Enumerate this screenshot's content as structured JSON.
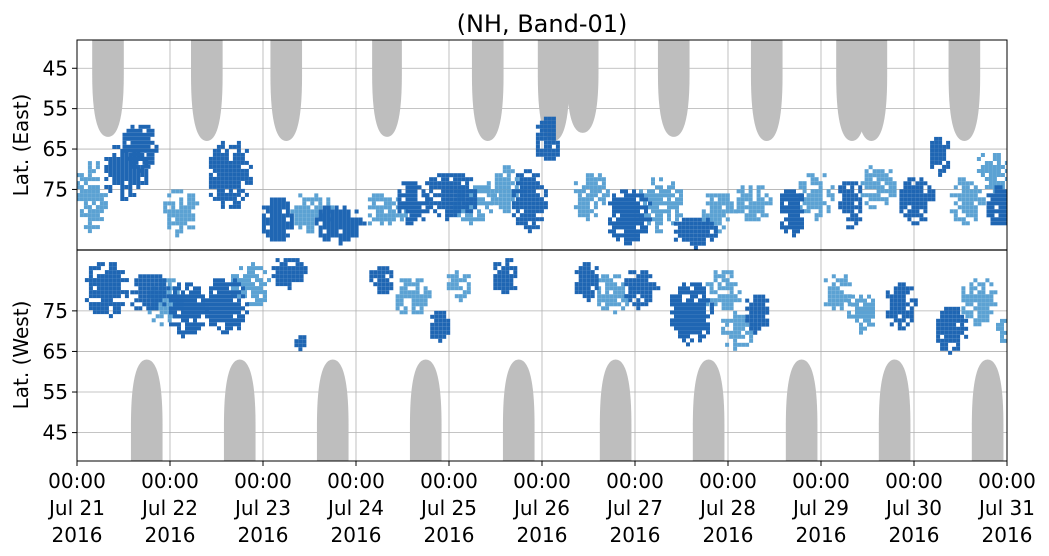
{
  "chart_data": {
    "type": "heatmap",
    "title": "(NH, Band-01)",
    "ylabel_upper": "Lat. (East)",
    "ylabel_lower": "Lat. (West)",
    "y_ticks_upper": [
      "45",
      "55",
      "65",
      "75"
    ],
    "y_ticks_lower": [
      "75",
      "65",
      "55",
      "45"
    ],
    "y_tick_values": [
      45,
      55,
      65,
      75
    ],
    "x_ticks": [
      [
        "00:00",
        "Jul 21",
        "2016"
      ],
      [
        "00:00",
        "Jul 22",
        "2016"
      ],
      [
        "00:00",
        "Jul 23",
        "2016"
      ],
      [
        "00:00",
        "Jul 24",
        "2016"
      ],
      [
        "00:00",
        "Jul 25",
        "2016"
      ],
      [
        "00:00",
        "Jul 26",
        "2016"
      ],
      [
        "00:00",
        "Jul 27",
        "2016"
      ],
      [
        "00:00",
        "Jul 28",
        "2016"
      ],
      [
        "00:00",
        "Jul 29",
        "2016"
      ],
      [
        "00:00",
        "Jul 30",
        "2016"
      ],
      [
        "00:00",
        "Jul 31",
        "2016"
      ]
    ],
    "xlim": [
      "2016-07-21 00:00",
      "2016-07-31 00:00"
    ],
    "ylim_upper": [
      38,
      90
    ],
    "ylim_lower": [
      90,
      38
    ],
    "grid": true,
    "colors": {
      "dark": "#1f66b3",
      "light": "#5ca2d3",
      "gray": "#bebebe",
      "centerline": "#000000"
    },
    "gray_upper": [
      {
        "center": "2016-07-21 08:00",
        "half_width_days": 0.17,
        "reach_lat": 62
      },
      {
        "center": "2016-07-22 09:30",
        "half_width_days": 0.17,
        "reach_lat": 63
      },
      {
        "center": "2016-07-23 06:00",
        "half_width_days": 0.17,
        "reach_lat": 63
      },
      {
        "center": "2016-07-24 08:00",
        "half_width_days": 0.16,
        "reach_lat": 62
      },
      {
        "center": "2016-07-25 10:00",
        "half_width_days": 0.17,
        "reach_lat": 63
      },
      {
        "center": "2016-07-26 03:00",
        "half_width_days": 0.17,
        "reach_lat": 63
      },
      {
        "center": "2016-07-26 10:30",
        "half_width_days": 0.17,
        "reach_lat": 61
      },
      {
        "center": "2016-07-27 10:00",
        "half_width_days": 0.17,
        "reach_lat": 62
      },
      {
        "center": "2016-07-28 10:00",
        "half_width_days": 0.17,
        "reach_lat": 63
      },
      {
        "center": "2016-07-29 08:00",
        "half_width_days": 0.17,
        "reach_lat": 63
      },
      {
        "center": "2016-07-29 13:00",
        "half_width_days": 0.17,
        "reach_lat": 63
      },
      {
        "center": "2016-07-30 13:00",
        "half_width_days": 0.17,
        "reach_lat": 63
      }
    ],
    "gray_lower": [
      {
        "center": "2016-07-21 18:00",
        "half_width_days": 0.17,
        "reach_lat": 63
      },
      {
        "center": "2016-07-22 18:00",
        "half_width_days": 0.17,
        "reach_lat": 63
      },
      {
        "center": "2016-07-23 18:00",
        "half_width_days": 0.17,
        "reach_lat": 63
      },
      {
        "center": "2016-07-24 18:00",
        "half_width_days": 0.17,
        "reach_lat": 63
      },
      {
        "center": "2016-07-25 18:00",
        "half_width_days": 0.17,
        "reach_lat": 63
      },
      {
        "center": "2016-07-26 19:00",
        "half_width_days": 0.17,
        "reach_lat": 63
      },
      {
        "center": "2016-07-27 19:00",
        "half_width_days": 0.17,
        "reach_lat": 63
      },
      {
        "center": "2016-07-28 19:00",
        "half_width_days": 0.17,
        "reach_lat": 63
      },
      {
        "center": "2016-07-29 19:00",
        "half_width_days": 0.17,
        "reach_lat": 63
      },
      {
        "center": "2016-07-30 19:00",
        "half_width_days": 0.17,
        "reach_lat": 63
      }
    ],
    "dark_blobs": [
      {
        "hemi": "upper",
        "t": "2016-07-21 12:00",
        "dt": 0.25,
        "lat": 70,
        "dlat": 7
      },
      {
        "hemi": "upper",
        "t": "2016-07-21 15:30",
        "dt": 0.2,
        "lat": 64,
        "dlat": 6
      },
      {
        "hemi": "upper",
        "t": "2016-07-22 15:00",
        "dt": 0.25,
        "lat": 71,
        "dlat": 9
      },
      {
        "hemi": "upper",
        "t": "2016-07-23 03:00",
        "dt": 0.18,
        "lat": 82,
        "dlat": 6
      },
      {
        "hemi": "upper",
        "t": "2016-07-23 19:00",
        "dt": 0.28,
        "lat": 83,
        "dlat": 5
      },
      {
        "hemi": "upper",
        "t": "2016-07-24 14:00",
        "dt": 0.18,
        "lat": 78,
        "dlat": 6
      },
      {
        "hemi": "upper",
        "t": "2016-07-25 00:00",
        "dt": 0.3,
        "lat": 76,
        "dlat": 6
      },
      {
        "hemi": "upper",
        "t": "2016-07-25 20:00",
        "dt": 0.2,
        "lat": 77,
        "dlat": 8
      },
      {
        "hemi": "upper",
        "t": "2016-07-26 01:00",
        "dt": 0.15,
        "lat": 62,
        "dlat": 6
      },
      {
        "hemi": "upper",
        "t": "2016-07-26 22:00",
        "dt": 0.25,
        "lat": 81,
        "dlat": 7
      },
      {
        "hemi": "upper",
        "t": "2016-07-27 15:00",
        "dt": 0.25,
        "lat": 85,
        "dlat": 4
      },
      {
        "hemi": "upper",
        "t": "2016-07-28 16:00",
        "dt": 0.15,
        "lat": 80,
        "dlat": 6
      },
      {
        "hemi": "upper",
        "t": "2016-07-29 07:00",
        "dt": 0.15,
        "lat": 78,
        "dlat": 6
      },
      {
        "hemi": "upper",
        "t": "2016-07-30 00:00",
        "dt": 0.2,
        "lat": 77,
        "dlat": 6
      },
      {
        "hemi": "upper",
        "t": "2016-07-30 06:00",
        "dt": 0.12,
        "lat": 66,
        "dlat": 5
      },
      {
        "hemi": "upper",
        "t": "2016-07-30 22:00",
        "dt": 0.18,
        "lat": 79,
        "dlat": 6
      },
      {
        "hemi": "lower",
        "t": "2016-07-21 07:00",
        "dt": 0.25,
        "lat": 81,
        "dlat": 7
      },
      {
        "hemi": "lower",
        "t": "2016-07-21 18:00",
        "dt": 0.22,
        "lat": 80,
        "dlat": 5
      },
      {
        "hemi": "lower",
        "t": "2016-07-22 04:00",
        "dt": 0.22,
        "lat": 76,
        "dlat": 7
      },
      {
        "hemi": "lower",
        "t": "2016-07-22 14:00",
        "dt": 0.25,
        "lat": 77,
        "dlat": 7
      },
      {
        "hemi": "lower",
        "t": "2016-07-23 06:00",
        "dt": 0.2,
        "lat": 85,
        "dlat": 4
      },
      {
        "hemi": "lower",
        "t": "2016-07-23 09:00",
        "dt": 0.08,
        "lat": 68,
        "dlat": 2
      },
      {
        "hemi": "lower",
        "t": "2016-07-24 06:00",
        "dt": 0.15,
        "lat": 83,
        "dlat": 4
      },
      {
        "hemi": "lower",
        "t": "2016-07-24 21:00",
        "dt": 0.12,
        "lat": 72,
        "dlat": 4
      },
      {
        "hemi": "lower",
        "t": "2016-07-25 14:00",
        "dt": 0.15,
        "lat": 84,
        "dlat": 5
      },
      {
        "hemi": "lower",
        "t": "2016-07-26 11:00",
        "dt": 0.15,
        "lat": 83,
        "dlat": 5
      },
      {
        "hemi": "lower",
        "t": "2016-07-27 01:00",
        "dt": 0.2,
        "lat": 81,
        "dlat": 5
      },
      {
        "hemi": "lower",
        "t": "2016-07-27 14:00",
        "dt": 0.25,
        "lat": 75,
        "dlat": 8
      },
      {
        "hemi": "lower",
        "t": "2016-07-28 07:00",
        "dt": 0.15,
        "lat": 75,
        "dlat": 5
      },
      {
        "hemi": "lower",
        "t": "2016-07-29 20:00",
        "dt": 0.18,
        "lat": 77,
        "dlat": 6
      },
      {
        "hemi": "lower",
        "t": "2016-07-30 09:00",
        "dt": 0.18,
        "lat": 71,
        "dlat": 6
      }
    ],
    "light_blobs": [
      {
        "hemi": "upper",
        "t": "2016-07-21 03:00",
        "dt": 0.18,
        "lat": 76,
        "dlat": 9
      },
      {
        "hemi": "upper",
        "t": "2016-07-22 02:00",
        "dt": 0.2,
        "lat": 80,
        "dlat": 6
      },
      {
        "hemi": "upper",
        "t": "2016-07-23 12:00",
        "dt": 0.25,
        "lat": 80,
        "dlat": 5
      },
      {
        "hemi": "upper",
        "t": "2016-07-24 07:00",
        "dt": 0.25,
        "lat": 80,
        "dlat": 5
      },
      {
        "hemi": "upper",
        "t": "2016-07-25 06:00",
        "dt": 0.25,
        "lat": 78,
        "dlat": 5
      },
      {
        "hemi": "upper",
        "t": "2016-07-25 14:00",
        "dt": 0.22,
        "lat": 74,
        "dlat": 6
      },
      {
        "hemi": "upper",
        "t": "2016-07-26 12:00",
        "dt": 0.2,
        "lat": 76,
        "dlat": 6
      },
      {
        "hemi": "upper",
        "t": "2016-07-27 06:00",
        "dt": 0.25,
        "lat": 78,
        "dlat": 7
      },
      {
        "hemi": "upper",
        "t": "2016-07-27 21:00",
        "dt": 0.2,
        "lat": 80,
        "dlat": 5
      },
      {
        "hemi": "upper",
        "t": "2016-07-28 06:00",
        "dt": 0.2,
        "lat": 78,
        "dlat": 5
      },
      {
        "hemi": "upper",
        "t": "2016-07-28 22:00",
        "dt": 0.2,
        "lat": 76,
        "dlat": 6
      },
      {
        "hemi": "upper",
        "t": "2016-07-29 14:00",
        "dt": 0.2,
        "lat": 74,
        "dlat": 6
      },
      {
        "hemi": "upper",
        "t": "2016-07-30 13:00",
        "dt": 0.2,
        "lat": 77,
        "dlat": 6
      },
      {
        "hemi": "upper",
        "t": "2016-07-30 20:00",
        "dt": 0.2,
        "lat": 70,
        "dlat": 5
      },
      {
        "hemi": "lower",
        "t": "2016-07-21 22:00",
        "dt": 0.2,
        "lat": 78,
        "dlat": 6
      },
      {
        "hemi": "lower",
        "t": "2016-07-22 20:00",
        "dt": 0.22,
        "lat": 82,
        "dlat": 6
      },
      {
        "hemi": "lower",
        "t": "2016-07-24 14:00",
        "dt": 0.2,
        "lat": 79,
        "dlat": 5
      },
      {
        "hemi": "lower",
        "t": "2016-07-25 02:00",
        "dt": 0.15,
        "lat": 82,
        "dlat": 4
      },
      {
        "hemi": "lower",
        "t": "2016-07-26 18:00",
        "dt": 0.2,
        "lat": 80,
        "dlat": 5
      },
      {
        "hemi": "lower",
        "t": "2016-07-27 22:00",
        "dt": 0.2,
        "lat": 80,
        "dlat": 6
      },
      {
        "hemi": "lower",
        "t": "2016-07-28 02:00",
        "dt": 0.2,
        "lat": 71,
        "dlat": 5
      },
      {
        "hemi": "lower",
        "t": "2016-07-29 04:00",
        "dt": 0.18,
        "lat": 80,
        "dlat": 5
      },
      {
        "hemi": "lower",
        "t": "2016-07-29 10:00",
        "dt": 0.18,
        "lat": 75,
        "dlat": 5
      },
      {
        "hemi": "lower",
        "t": "2016-07-30 16:00",
        "dt": 0.2,
        "lat": 78,
        "dlat": 6
      },
      {
        "hemi": "lower",
        "t": "2016-07-30 23:00",
        "dt": 0.12,
        "lat": 70,
        "dlat": 4
      }
    ]
  }
}
